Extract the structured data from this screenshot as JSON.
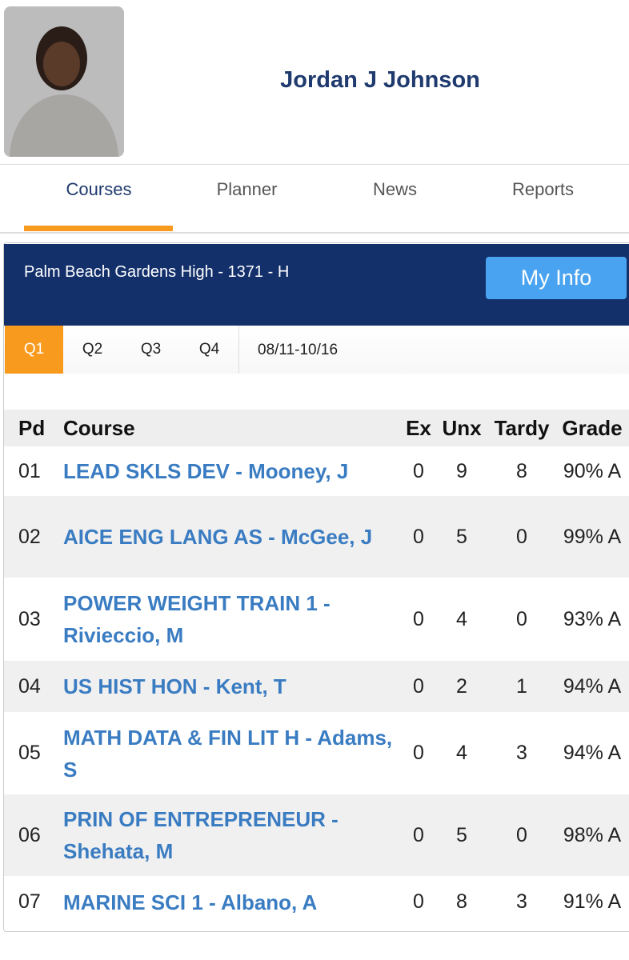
{
  "header": {
    "name": "Jordan J Johnson"
  },
  "tabs": [
    "Courses",
    "Planner",
    "News",
    "Reports"
  ],
  "panel": {
    "school": "Palm Beach Gardens High - 1371 - H",
    "button": "My Info",
    "terms": [
      "Q1",
      "Q2",
      "Q3",
      "Q4"
    ],
    "date_range": "08/11-10/16"
  },
  "table": {
    "columns": [
      "Pd",
      "Course",
      "Ex",
      "Unx",
      "Tardy",
      "Grade"
    ],
    "rows": [
      [
        "01",
        "LEAD SKLS DEV - Mooney, J",
        0,
        9,
        8,
        "90% A"
      ],
      [
        "02",
        "AICE ENG LANG AS - McGee, J",
        0,
        5,
        0,
        "99% A"
      ],
      [
        "03",
        "POWER WEIGHT TRAIN 1 - Rivieccio, M",
        0,
        4,
        0,
        "93% A"
      ],
      [
        "04",
        "US HIST HON - Kent, T",
        0,
        2,
        1,
        "94% A"
      ],
      [
        "05",
        "MATH DATA & FIN LIT H - Adams, S",
        0,
        4,
        3,
        "94% A"
      ],
      [
        "06",
        "PRIN OF ENTREPRENEUR - Shehata, M",
        0,
        5,
        0,
        "98% A"
      ],
      [
        "07",
        "MARINE SCI 1 - Albano, A",
        0,
        8,
        3,
        "91% A"
      ]
    ]
  }
}
